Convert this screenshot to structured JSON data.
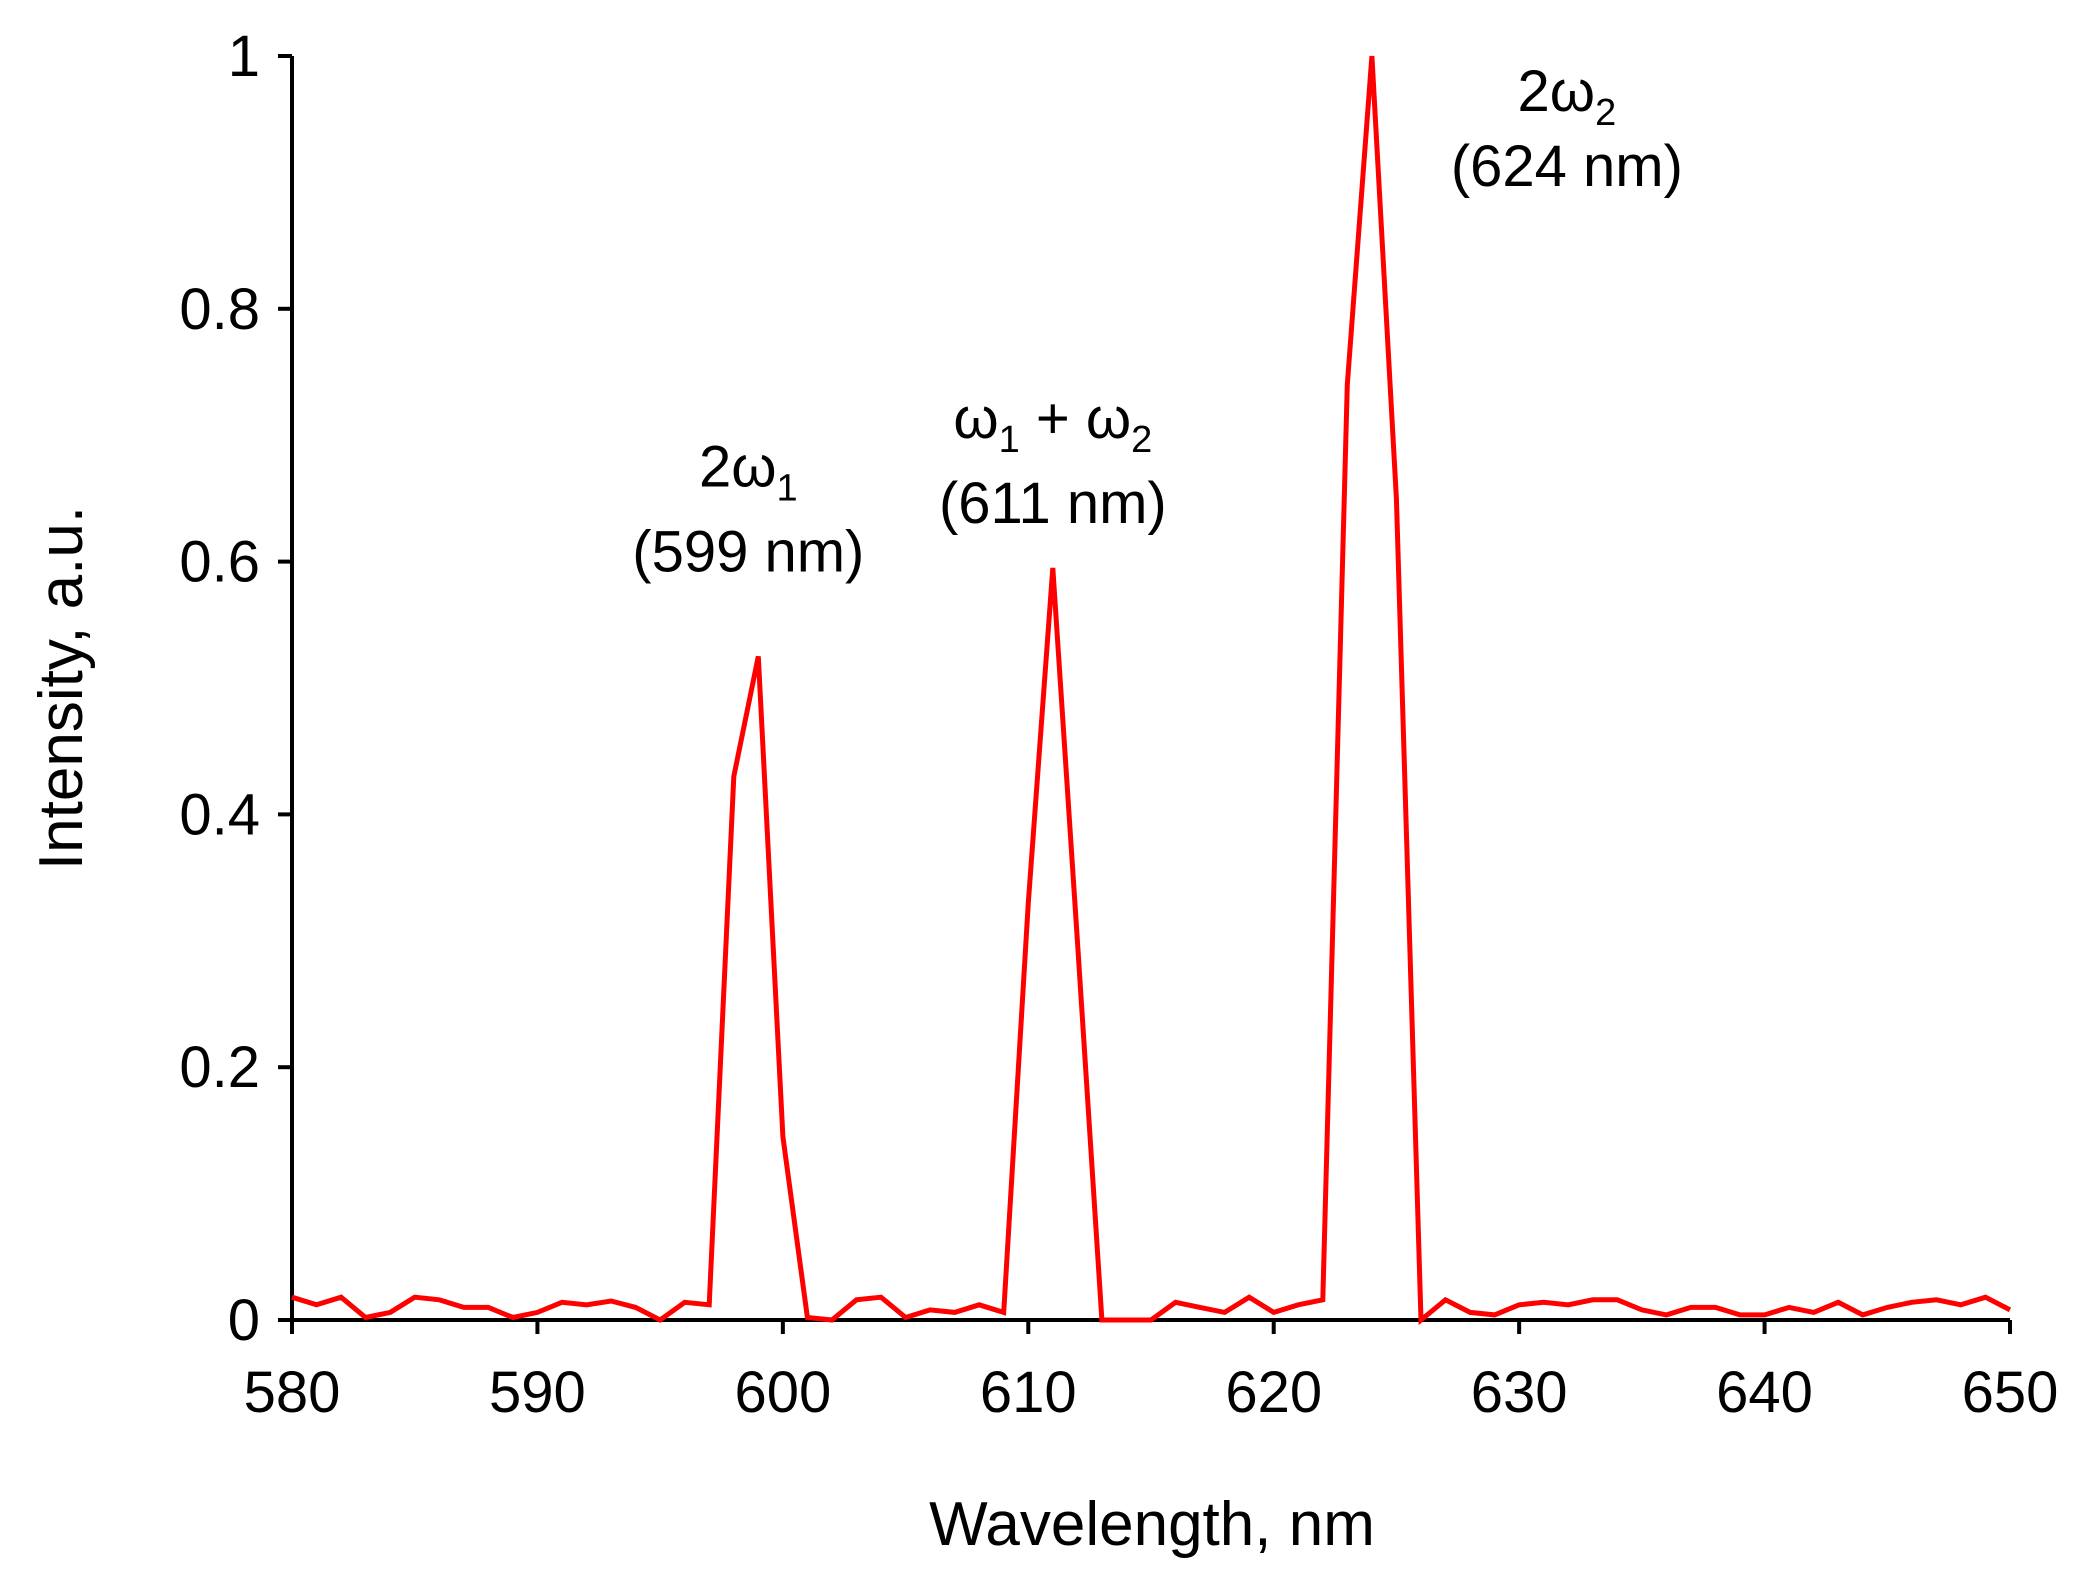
{
  "chart_data": {
    "type": "line",
    "xlabel": "Wavelength, nm",
    "ylabel": "Intensity, a.u.",
    "xlim": [
      580,
      650
    ],
    "ylim": [
      0,
      1
    ],
    "x_ticks": [
      "580",
      "590",
      "600",
      "610",
      "620",
      "630",
      "640",
      "650"
    ],
    "y_ticks": [
      "0",
      "0.2",
      "0.4",
      "0.6",
      "0.8",
      "1"
    ],
    "grid": false,
    "line_color": "#ff0000",
    "series": [
      {
        "x": [
          580,
          581,
          582,
          583,
          584,
          585,
          586,
          587,
          588,
          589,
          590,
          591,
          592,
          593,
          594,
          595,
          596,
          597,
          598,
          599,
          600,
          601,
          602,
          603,
          604,
          605,
          606,
          607,
          608,
          609,
          610,
          611,
          612,
          613,
          614,
          615,
          616,
          617,
          618,
          619,
          620,
          621,
          622,
          623,
          624,
          625,
          626,
          627,
          628,
          629,
          630,
          631,
          632,
          633,
          634,
          635,
          636,
          637,
          638,
          639,
          640,
          641,
          642,
          643,
          644,
          645,
          646,
          647,
          648,
          649,
          650
        ],
        "y": [
          0.018,
          0.012,
          0.018,
          0.002,
          0.006,
          0.018,
          0.016,
          0.01,
          0.01,
          0.002,
          0.006,
          0.014,
          0.012,
          0.015,
          0.01,
          0.0,
          0.014,
          0.012,
          0.43,
          0.525,
          0.145,
          0.002,
          0.0,
          0.016,
          0.018,
          0.002,
          0.008,
          0.006,
          0.012,
          0.006,
          0.33,
          0.595,
          0.3,
          0.0,
          0.0,
          0.0,
          0.014,
          0.01,
          0.006,
          0.018,
          0.006,
          0.012,
          0.016,
          0.74,
          1.0,
          0.65,
          0.0,
          0.016,
          0.006,
          0.004,
          0.012,
          0.014,
          0.012,
          0.016,
          0.016,
          0.008,
          0.004,
          0.01,
          0.01,
          0.004,
          0.004,
          0.01,
          0.006,
          0.014,
          0.004,
          0.01,
          0.014,
          0.016,
          0.012,
          0.018,
          0.008
        ]
      }
    ],
    "annotations": [
      {
        "label_main": "2ω",
        "label_sub": "1",
        "label_after": "",
        "label_line2": "(599 nm)",
        "x": 599,
        "y": 0.525
      },
      {
        "label_main": "ω",
        "label_sub": "1",
        "label_after": " + ω",
        "label_sub2": "2",
        "label_line2": "(611 nm)",
        "x": 611,
        "y": 0.595
      },
      {
        "label_main": "2ω",
        "label_sub": "2",
        "label_after": "",
        "label_line2": "(624 nm)",
        "x": 624,
        "y": 1.0
      }
    ]
  }
}
